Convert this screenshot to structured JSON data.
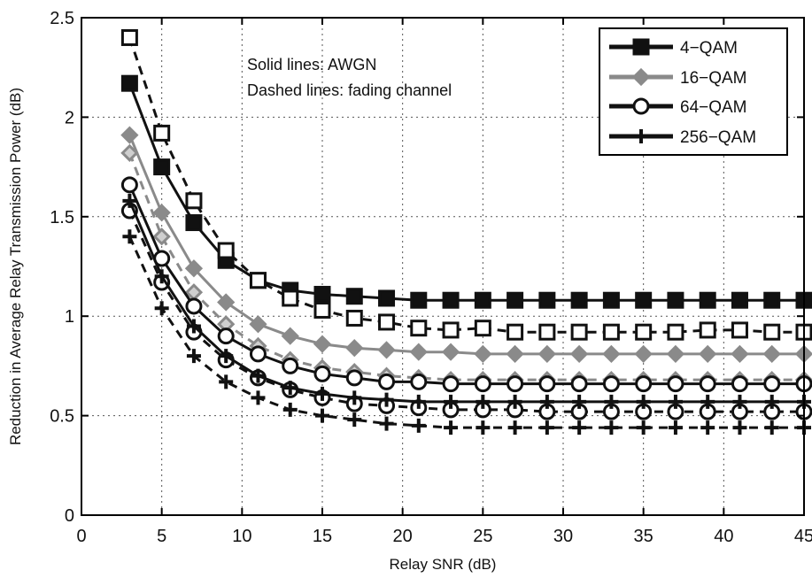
{
  "chart_data": {
    "type": "line",
    "xlabel": "Relay SNR (dB)",
    "ylabel": "Reduction in Average Relay Transmission Power (dB)",
    "xlim": [
      0,
      45
    ],
    "ylim": [
      0,
      2.5
    ],
    "xticks": [
      0,
      5,
      10,
      15,
      20,
      25,
      30,
      35,
      40,
      45
    ],
    "yticks": [
      0,
      0.5,
      1,
      1.5,
      2,
      2.5
    ],
    "xtick_labels": [
      "0",
      "5",
      "10",
      "15",
      "20",
      "25",
      "30",
      "35",
      "40",
      "45"
    ],
    "ytick_labels": [
      "0",
      "0.5",
      "1",
      "1.5",
      "2",
      "2.5"
    ],
    "grid": true,
    "legend_position": "top-right",
    "annotations": [
      "Solid lines: AWGN",
      "Dashed lines: fading channel"
    ],
    "x": [
      3,
      5,
      7,
      9,
      11,
      13,
      15,
      17,
      19,
      21,
      23,
      25,
      27,
      29,
      31,
      33,
      35,
      37,
      39,
      41,
      43,
      45
    ],
    "series": [
      {
        "name": "4−QAM",
        "marker": "square",
        "color": "#111111",
        "line": "solid",
        "values": [
          2.17,
          1.75,
          1.47,
          1.28,
          1.18,
          1.13,
          1.11,
          1.1,
          1.09,
          1.08,
          1.08,
          1.08,
          1.08,
          1.08,
          1.08,
          1.08,
          1.08,
          1.08,
          1.08,
          1.08,
          1.08,
          1.08
        ]
      },
      {
        "name": "",
        "marker": "square",
        "color": "#111111",
        "line": "dashed",
        "values": [
          2.4,
          1.92,
          1.58,
          1.33,
          1.18,
          1.09,
          1.03,
          0.99,
          0.97,
          0.94,
          0.93,
          0.94,
          0.92,
          0.92,
          0.92,
          0.92,
          0.92,
          0.92,
          0.93,
          0.93,
          0.92,
          0.92
        ]
      },
      {
        "name": "16−QAM",
        "marker": "diamond",
        "color": "#8a8a8a",
        "line": "solid",
        "values": [
          1.91,
          1.52,
          1.24,
          1.07,
          0.96,
          0.9,
          0.86,
          0.84,
          0.83,
          0.82,
          0.82,
          0.81,
          0.81,
          0.81,
          0.81,
          0.81,
          0.81,
          0.81,
          0.81,
          0.81,
          0.81,
          0.81
        ]
      },
      {
        "name": "",
        "marker": "diamond",
        "color": "#8a8a8a",
        "line": "dashed",
        "values": [
          1.82,
          1.4,
          1.12,
          0.96,
          0.85,
          0.78,
          0.74,
          0.72,
          0.7,
          0.69,
          0.68,
          0.68,
          0.68,
          0.68,
          0.68,
          0.68,
          0.68,
          0.68,
          0.68,
          0.68,
          0.68,
          0.68
        ]
      },
      {
        "name": "64−QAM",
        "marker": "circle",
        "color": "#111111",
        "line": "solid",
        "values": [
          1.66,
          1.29,
          1.05,
          0.9,
          0.81,
          0.75,
          0.71,
          0.69,
          0.67,
          0.67,
          0.66,
          0.66,
          0.66,
          0.66,
          0.66,
          0.66,
          0.66,
          0.66,
          0.66,
          0.66,
          0.66,
          0.66
        ]
      },
      {
        "name": "",
        "marker": "circle",
        "color": "#111111",
        "line": "dashed",
        "values": [
          1.53,
          1.17,
          0.92,
          0.78,
          0.69,
          0.63,
          0.59,
          0.56,
          0.55,
          0.54,
          0.53,
          0.53,
          0.53,
          0.52,
          0.52,
          0.52,
          0.52,
          0.52,
          0.52,
          0.52,
          0.52,
          0.52
        ]
      },
      {
        "name": "256−QAM",
        "marker": "plus",
        "color": "#111111",
        "line": "solid",
        "values": [
          1.58,
          1.2,
          0.95,
          0.8,
          0.7,
          0.64,
          0.61,
          0.59,
          0.58,
          0.57,
          0.57,
          0.57,
          0.57,
          0.57,
          0.57,
          0.57,
          0.57,
          0.57,
          0.57,
          0.57,
          0.57,
          0.57
        ]
      },
      {
        "name": "",
        "marker": "plus",
        "color": "#111111",
        "line": "dashed",
        "values": [
          1.4,
          1.04,
          0.8,
          0.67,
          0.59,
          0.53,
          0.5,
          0.48,
          0.46,
          0.45,
          0.44,
          0.44,
          0.44,
          0.44,
          0.44,
          0.44,
          0.44,
          0.44,
          0.44,
          0.44,
          0.44,
          0.44
        ]
      }
    ]
  }
}
